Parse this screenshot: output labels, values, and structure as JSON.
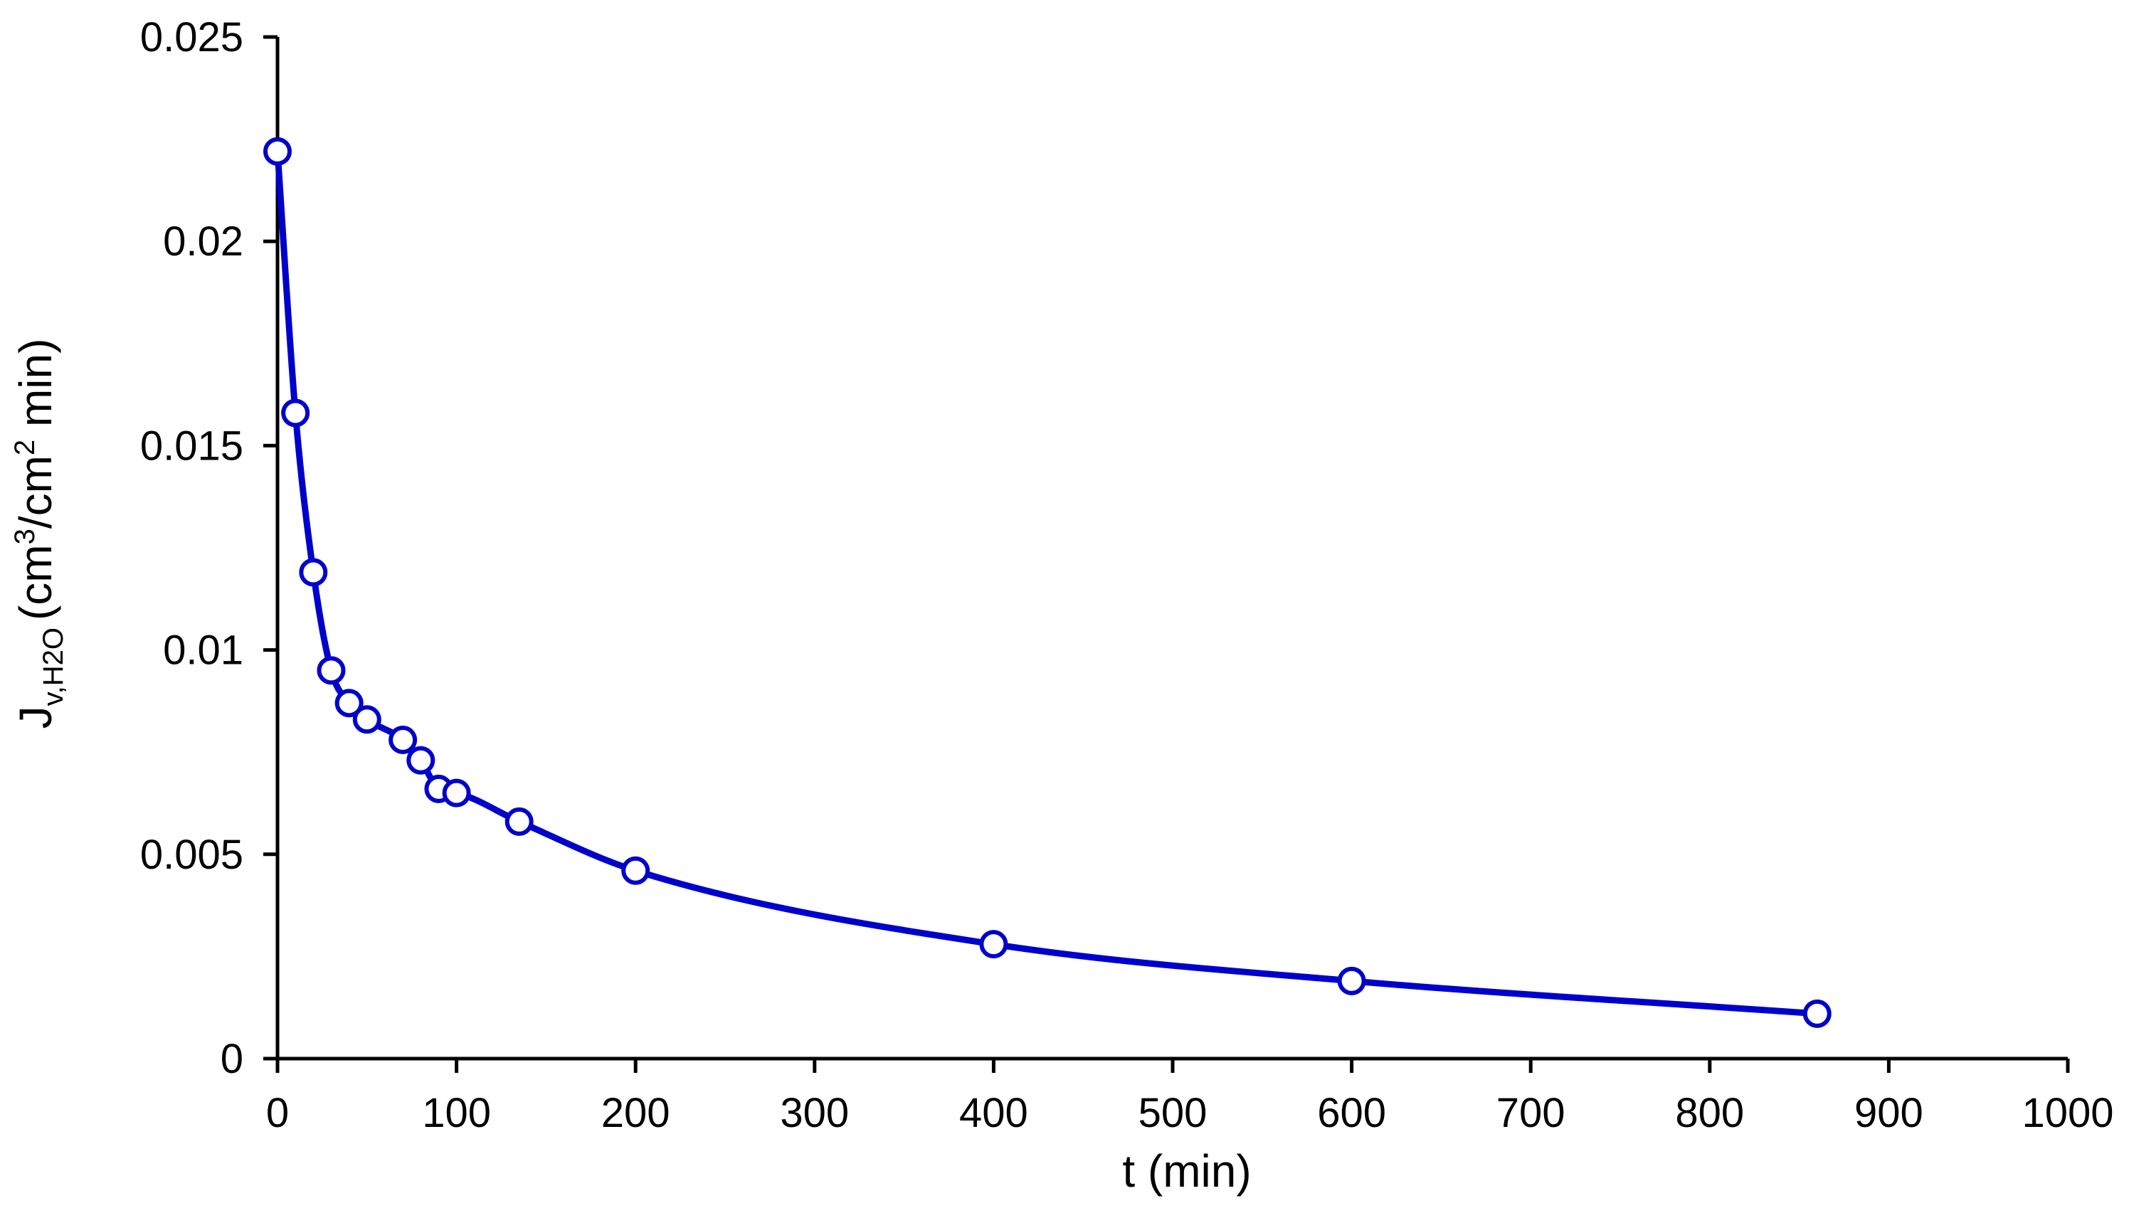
{
  "chart_data": {
    "type": "scatter",
    "title": "",
    "xlabel": "t (min)",
    "ylabel": {
      "main": "J",
      "subscript": "v,H2O",
      "unit_open": "(cm",
      "unit_sup1": "3",
      "unit_mid": "/cm",
      "unit_sup2": "2",
      "unit_close": " min)"
    },
    "xlim": [
      0,
      1000
    ],
    "ylim": [
      0,
      0.025
    ],
    "x_ticks": [
      "0",
      "100",
      "200",
      "300",
      "400",
      "500",
      "600",
      "700",
      "800",
      "900",
      "1000"
    ],
    "y_ticks": [
      "0",
      "0.005",
      "0.01",
      "0.015",
      "0.02",
      "0.025"
    ],
    "grid": false,
    "legend": "none",
    "series": [
      {
        "marker": "open-circle",
        "line": "smooth",
        "color": "#0000CC",
        "x": [
          0,
          10,
          20,
          30,
          40,
          50,
          70,
          80,
          90,
          100,
          135,
          200,
          400,
          600,
          860
        ],
        "y": [
          0.0222,
          0.0158,
          0.0119,
          0.0095,
          0.0087,
          0.0083,
          0.0078,
          0.0073,
          0.0066,
          0.0065,
          0.0058,
          0.0046,
          0.0028,
          0.0019,
          0.0011
        ]
      }
    ]
  }
}
